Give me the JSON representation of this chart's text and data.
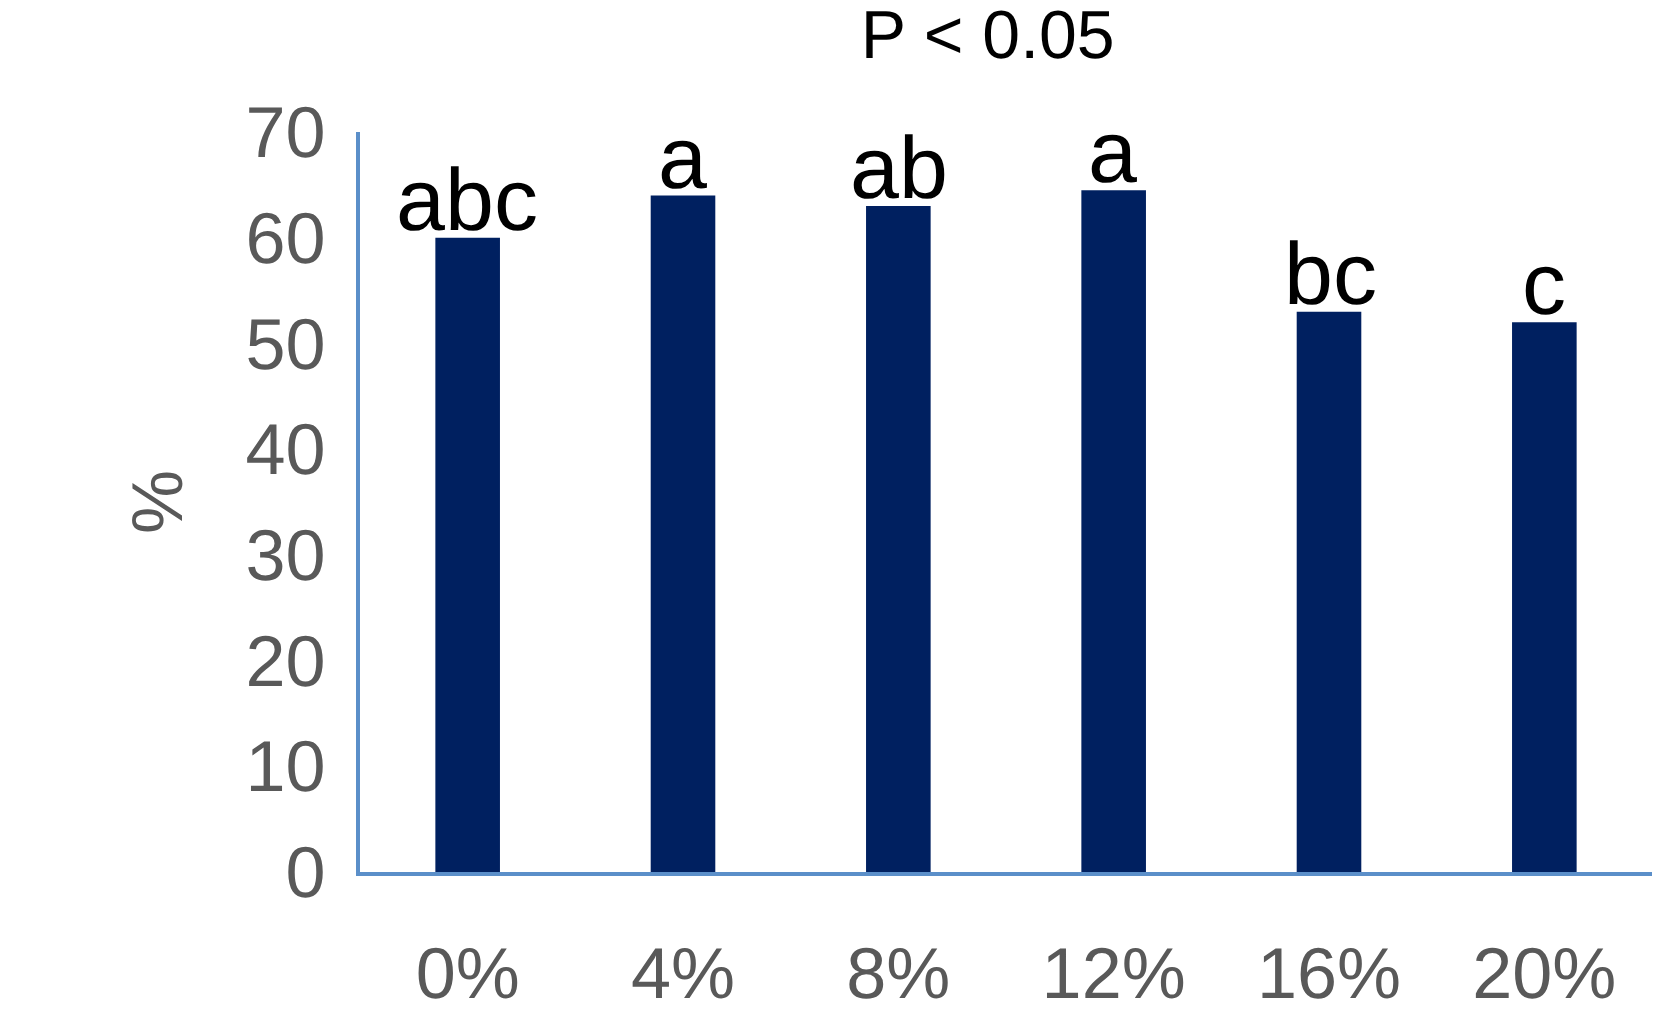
{
  "chart_data": {
    "type": "bar",
    "title": "P < 0.05",
    "ylabel": "%",
    "categories": [
      "0%",
      "4%",
      "8%",
      "12%",
      "16%",
      "20%"
    ],
    "values": [
      60,
      64,
      63,
      64.5,
      53,
      52
    ],
    "color": "#002060",
    "ylim": [
      0,
      70
    ],
    "yticks": [
      0,
      10,
      20,
      30,
      40,
      50,
      60,
      70
    ],
    "grid": false,
    "annotations": [
      {
        "text": "abc",
        "x": "0%",
        "y": 60
      },
      {
        "text": "a",
        "x": "4%",
        "y": 64
      },
      {
        "text": "ab",
        "x": "8%",
        "y": 63
      },
      {
        "text": "a",
        "x": "12%",
        "y": 64.5
      },
      {
        "text": "bc",
        "x": "16%",
        "y": 53
      },
      {
        "text": "c",
        "x": "20%",
        "y": 52
      }
    ]
  }
}
